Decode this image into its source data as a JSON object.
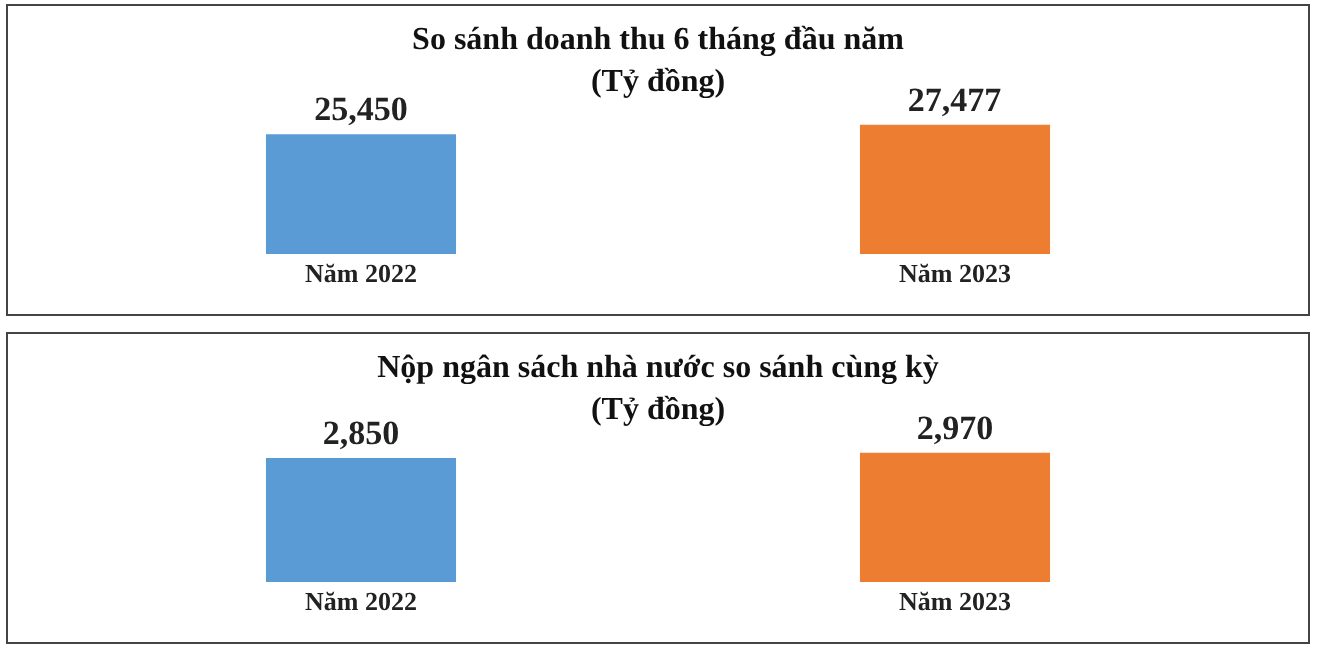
{
  "chart_data": [
    {
      "type": "bar",
      "title": "So sánh doanh thu 6 tháng đầu năm",
      "subtitle": "(Tỷ đồng)",
      "categories": [
        "Năm 2022",
        "Năm 2023"
      ],
      "values": [
        25450,
        27477
      ],
      "colors": [
        "#5b9bd5",
        "#ed7d31"
      ],
      "value_labels": [
        "25,450",
        "27,477"
      ],
      "tick_labels": "x",
      "legend": false
    },
    {
      "type": "bar",
      "title": "Nộp ngân sách nhà nước so sánh cùng kỳ",
      "subtitle": "(Tỷ đồng)",
      "categories": [
        "Năm 2022",
        "Năm 2023"
      ],
      "values": [
        2850,
        2970
      ],
      "colors": [
        "#5b9bd5",
        "#ed7d31"
      ],
      "value_labels": [
        "2,850",
        "2,970"
      ],
      "tick_labels": "x",
      "legend": false
    }
  ]
}
